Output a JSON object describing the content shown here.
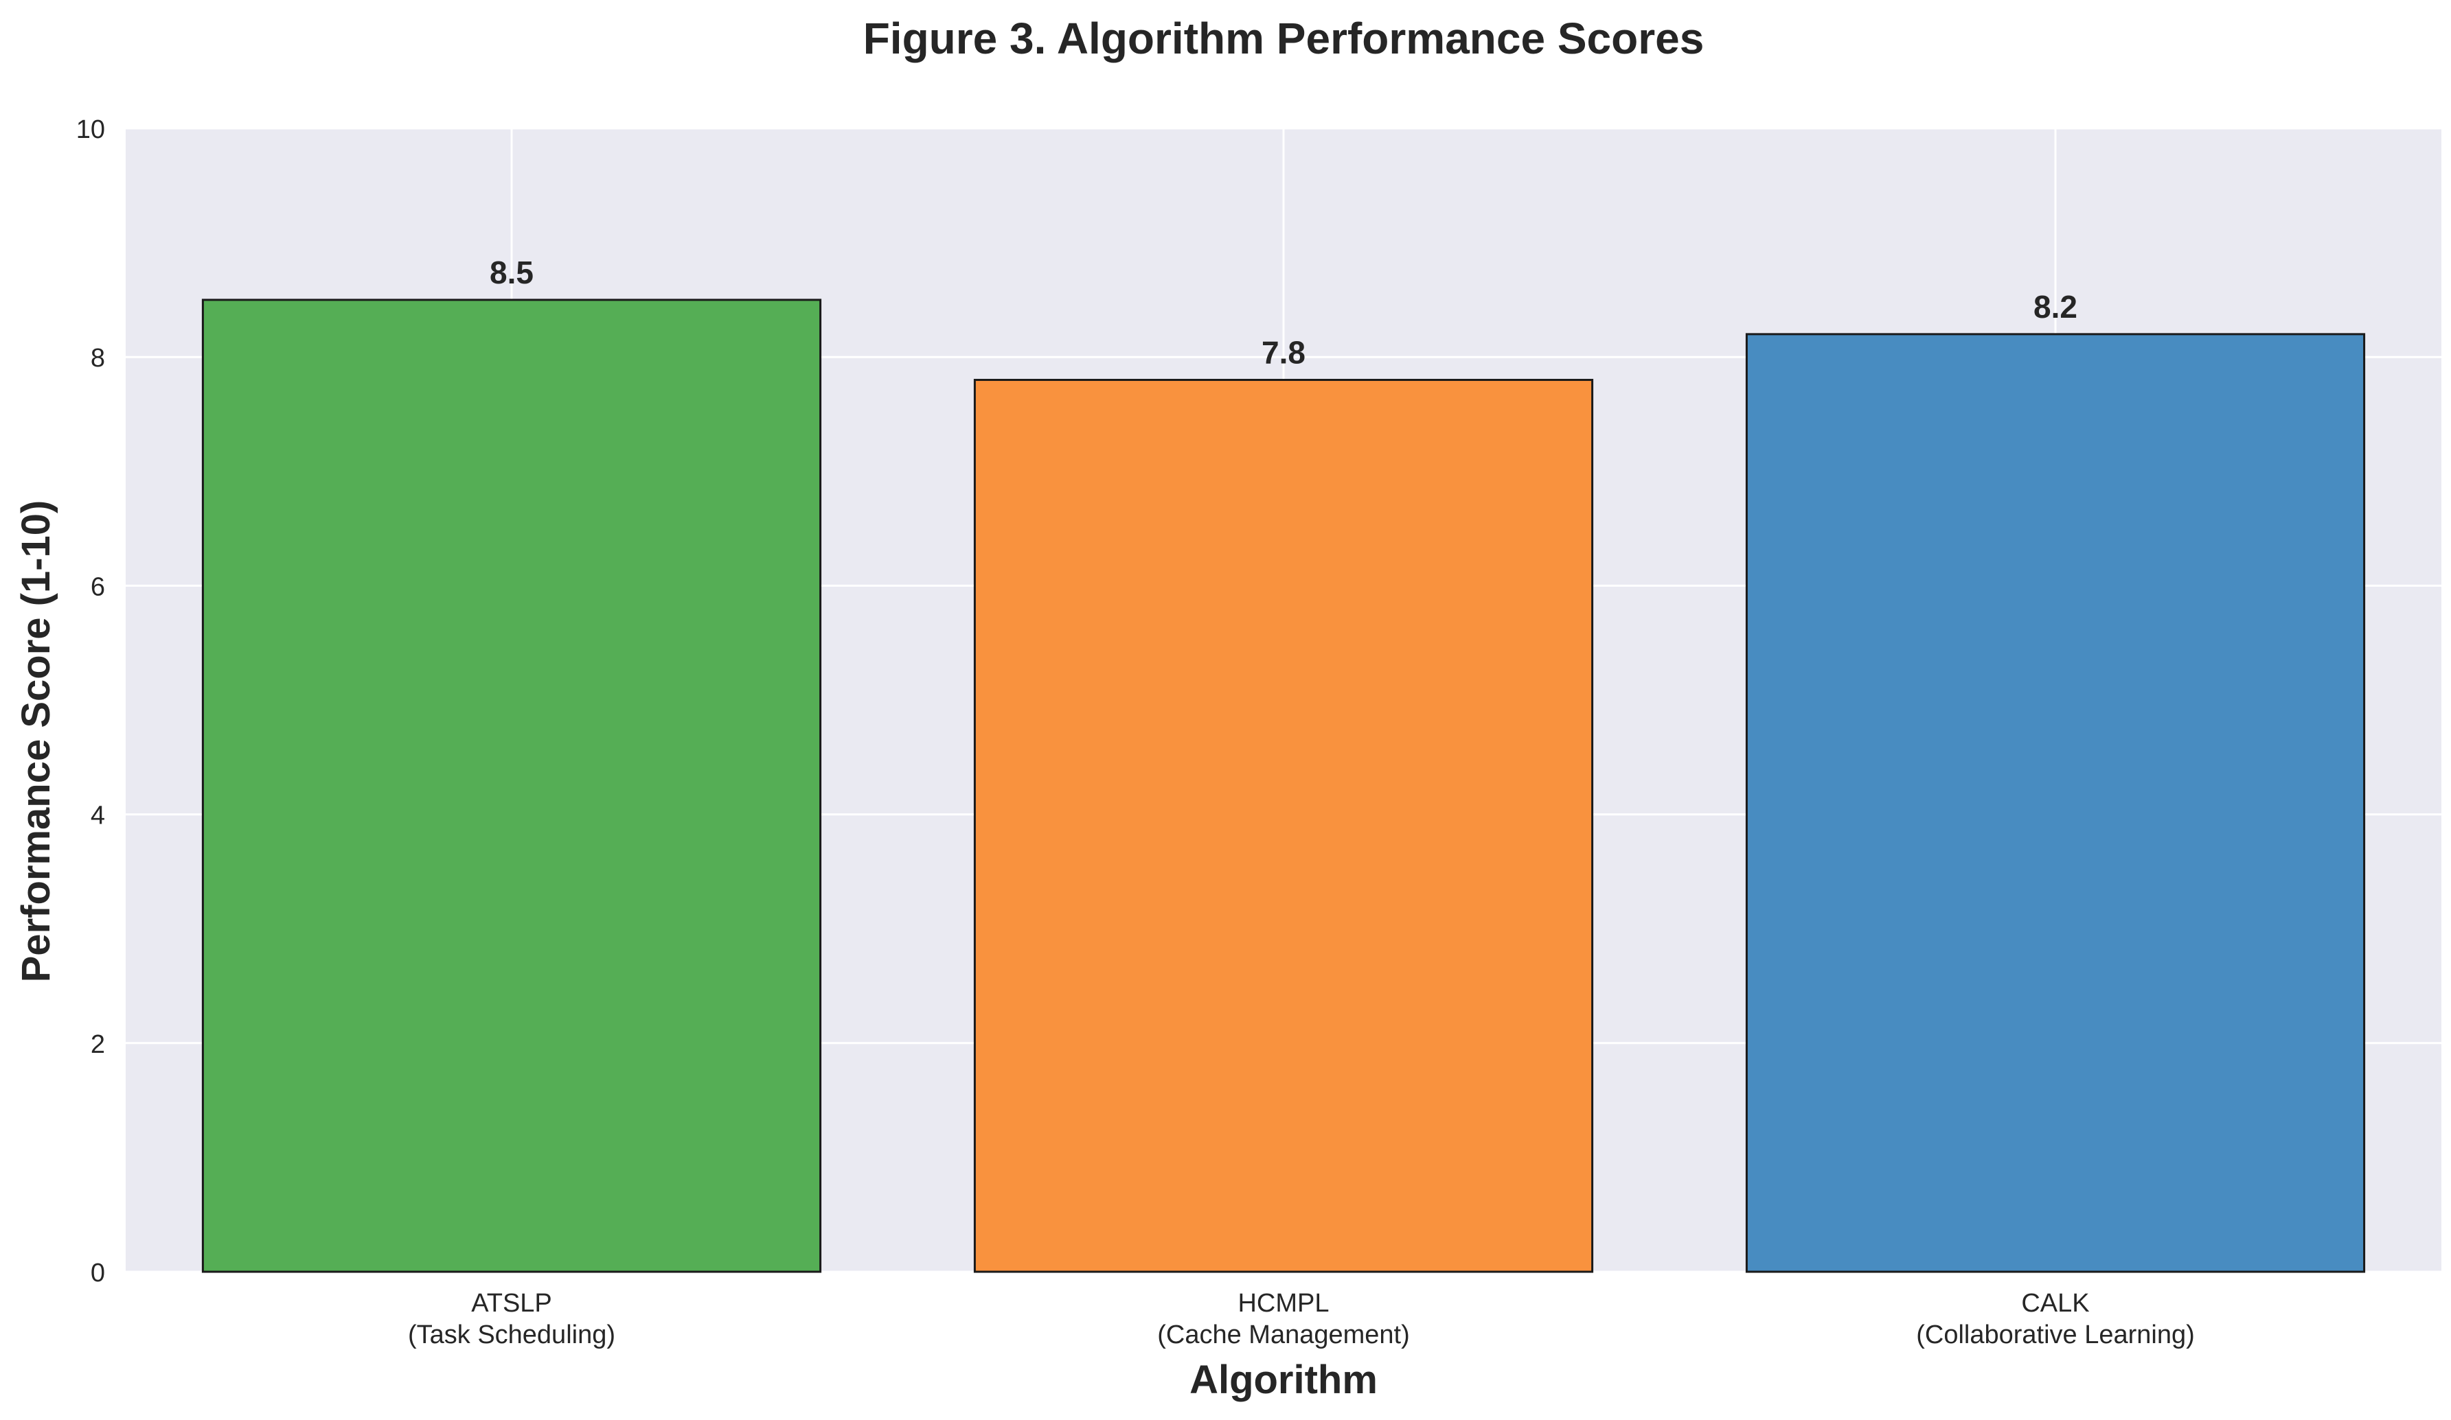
{
  "chart_data": {
    "type": "bar",
    "title": "Figure 3. Algorithm Performance Scores",
    "xlabel": "Algorithm",
    "ylabel": "Performance Score (1-10)",
    "ylim": [
      0,
      10
    ],
    "yticks": [
      0,
      2,
      4,
      6,
      8,
      10
    ],
    "grid": true,
    "categories": [
      {
        "name": "ATSLP",
        "sub": "(Task Scheduling)"
      },
      {
        "name": "HCMPL",
        "sub": "(Cache Management)"
      },
      {
        "name": "CALK",
        "sub": "(Collaborative Learning)"
      }
    ],
    "values": [
      8.5,
      7.8,
      8.2
    ],
    "value_labels": [
      "8.5",
      "7.8",
      "8.2"
    ],
    "colors": [
      "#55ae55",
      "#f9923e",
      "#488cc1"
    ],
    "plot_background": "#eaeaf2",
    "bar_edge_color": "#1a1a1a"
  }
}
